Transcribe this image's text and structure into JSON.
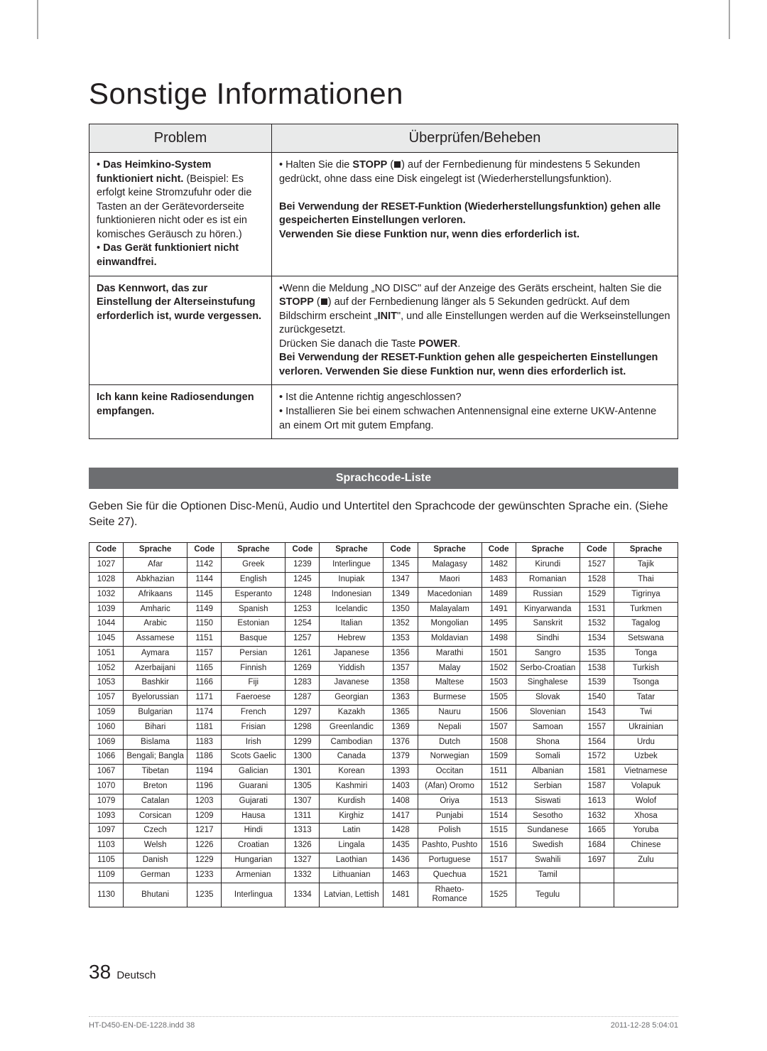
{
  "page_title": "Sonstige Informationen",
  "troubleshoot": {
    "header_problem": "Problem",
    "header_fix": "Überprüfen/Beheben",
    "rows": [
      {
        "problem_html": "• <b>Das Heimkino-System funktioniert nicht.</b> (Beispiel: Es erfolgt keine Stromzufuhr oder die Tasten an der Gerätevorderseite funktionieren nicht oder es ist ein komisches Geräusch zu hören.)<br>• <b>Das Gerät funktioniert nicht einwandfrei.</b>",
        "fix_html": "• Halten Sie die <b>STOPP</b> (<span class=\"stop-square\"></span>) auf der Fernbedienung für mindestens 5 Sekunden gedrückt, ohne dass eine Disk eingelegt ist (Wiederherstellungsfunktion).<br><br><b>Bei Verwendung der RESET-Funktion (Wiederherstellungsfunktion) gehen alle gespeicherten Einstellungen verloren.<br>Verwenden Sie diese Funktion nur, wenn dies erforderlich ist.</b>"
      },
      {
        "problem_html": "<b>Das Kennwort, das zur Einstellung der Alterseinstufung erforderlich ist, wurde vergessen.</b>",
        "fix_html": "•Wenn die Meldung „NO DISC\" auf der Anzeige des Geräts erscheint, halten Sie die <b>STOPP</b> (<span class=\"stop-square\"></span>) auf der Fernbedienung länger als 5 Sekunden gedrückt. Auf dem Bildschirm erscheint „<b>INIT</b>\", und alle Einstellungen werden auf die Werkseinstellungen zurückgesetzt.<br>Drücken Sie danach die Taste <b>POWER</b>.<br><b>Bei Verwendung der RESET-Funktion gehen alle gespeicherten Einstellungen verloren. Verwenden Sie diese Funktion nur, wenn dies erforderlich ist.</b>"
      },
      {
        "problem_html": "<b>Ich kann keine Radiosendungen empfangen.</b>",
        "fix_html": "• Ist die Antenne richtig angeschlossen?<br>• Installieren Sie bei einem schwachen Antennensignal eine externe UKW-Antenne an einem Ort mit gutem Empfang."
      }
    ]
  },
  "section_title": "Sprachcode-Liste",
  "intro": "Geben Sie für die Optionen Disc-Menü, Audio und Untertitel den Sprachcode der gewünschten Sprache ein. (Siehe Seite 27).",
  "lang_header_code": "Code",
  "lang_header_lang": "Sprache",
  "lang_rows": [
    [
      "1027",
      "Afar",
      "1142",
      "Greek",
      "1239",
      "Interlingue",
      "1345",
      "Malagasy",
      "1482",
      "Kirundi",
      "1527",
      "Tajik"
    ],
    [
      "1028",
      "Abkhazian",
      "1144",
      "English",
      "1245",
      "Inupiak",
      "1347",
      "Maori",
      "1483",
      "Romanian",
      "1528",
      "Thai"
    ],
    [
      "1032",
      "Afrikaans",
      "1145",
      "Esperanto",
      "1248",
      "Indonesian",
      "1349",
      "Macedonian",
      "1489",
      "Russian",
      "1529",
      "Tigrinya"
    ],
    [
      "1039",
      "Amharic",
      "1149",
      "Spanish",
      "1253",
      "Icelandic",
      "1350",
      "Malayalam",
      "1491",
      "Kinyarwanda",
      "1531",
      "Turkmen"
    ],
    [
      "1044",
      "Arabic",
      "1150",
      "Estonian",
      "1254",
      "Italian",
      "1352",
      "Mongolian",
      "1495",
      "Sanskrit",
      "1532",
      "Tagalog"
    ],
    [
      "1045",
      "Assamese",
      "1151",
      "Basque",
      "1257",
      "Hebrew",
      "1353",
      "Moldavian",
      "1498",
      "Sindhi",
      "1534",
      "Setswana"
    ],
    [
      "1051",
      "Aymara",
      "1157",
      "Persian",
      "1261",
      "Japanese",
      "1356",
      "Marathi",
      "1501",
      "Sangro",
      "1535",
      "Tonga"
    ],
    [
      "1052",
      "Azerbaijani",
      "1165",
      "Finnish",
      "1269",
      "Yiddish",
      "1357",
      "Malay",
      "1502",
      "Serbo-Croatian",
      "1538",
      "Turkish"
    ],
    [
      "1053",
      "Bashkir",
      "1166",
      "Fiji",
      "1283",
      "Javanese",
      "1358",
      "Maltese",
      "1503",
      "Singhalese",
      "1539",
      "Tsonga"
    ],
    [
      "1057",
      "Byelorussian",
      "1171",
      "Faeroese",
      "1287",
      "Georgian",
      "1363",
      "Burmese",
      "1505",
      "Slovak",
      "1540",
      "Tatar"
    ],
    [
      "1059",
      "Bulgarian",
      "1174",
      "French",
      "1297",
      "Kazakh",
      "1365",
      "Nauru",
      "1506",
      "Slovenian",
      "1543",
      "Twi"
    ],
    [
      "1060",
      "Bihari",
      "1181",
      "Frisian",
      "1298",
      "Greenlandic",
      "1369",
      "Nepali",
      "1507",
      "Samoan",
      "1557",
      "Ukrainian"
    ],
    [
      "1069",
      "Bislama",
      "1183",
      "Irish",
      "1299",
      "Cambodian",
      "1376",
      "Dutch",
      "1508",
      "Shona",
      "1564",
      "Urdu"
    ],
    [
      "1066",
      "Bengali; Bangla",
      "1186",
      "Scots Gaelic",
      "1300",
      "Canada",
      "1379",
      "Norwegian",
      "1509",
      "Somali",
      "1572",
      "Uzbek"
    ],
    [
      "1067",
      "Tibetan",
      "1194",
      "Galician",
      "1301",
      "Korean",
      "1393",
      "Occitan",
      "1511",
      "Albanian",
      "1581",
      "Vietnamese"
    ],
    [
      "1070",
      "Breton",
      "1196",
      "Guarani",
      "1305",
      "Kashmiri",
      "1403",
      "(Afan) Oromo",
      "1512",
      "Serbian",
      "1587",
      "Volapuk"
    ],
    [
      "1079",
      "Catalan",
      "1203",
      "Gujarati",
      "1307",
      "Kurdish",
      "1408",
      "Oriya",
      "1513",
      "Siswati",
      "1613",
      "Wolof"
    ],
    [
      "1093",
      "Corsican",
      "1209",
      "Hausa",
      "1311",
      "Kirghiz",
      "1417",
      "Punjabi",
      "1514",
      "Sesotho",
      "1632",
      "Xhosa"
    ],
    [
      "1097",
      "Czech",
      "1217",
      "Hindi",
      "1313",
      "Latin",
      "1428",
      "Polish",
      "1515",
      "Sundanese",
      "1665",
      "Yoruba"
    ],
    [
      "1103",
      "Welsh",
      "1226",
      "Croatian",
      "1326",
      "Lingala",
      "1435",
      "Pashto, Pushto",
      "1516",
      "Swedish",
      "1684",
      "Chinese"
    ],
    [
      "1105",
      "Danish",
      "1229",
      "Hungarian",
      "1327",
      "Laothian",
      "1436",
      "Portuguese",
      "1517",
      "Swahili",
      "1697",
      "Zulu"
    ],
    [
      "1109",
      "German",
      "1233",
      "Armenian",
      "1332",
      "Lithuanian",
      "1463",
      "Quechua",
      "1521",
      "Tamil",
      "",
      ""
    ],
    [
      "1130",
      "Bhutani",
      "1235",
      "Interlingua",
      "1334",
      "Latvian, Lettish",
      "1481",
      "Rhaeto-Romance",
      "1525",
      "Tegulu",
      "",
      ""
    ]
  ],
  "footer_page": "38",
  "footer_lang": "Deutsch",
  "imprint_file": "HT-D450-EN-DE-1228.indd   38",
  "imprint_ts": "2011-12-28    5:04:01"
}
